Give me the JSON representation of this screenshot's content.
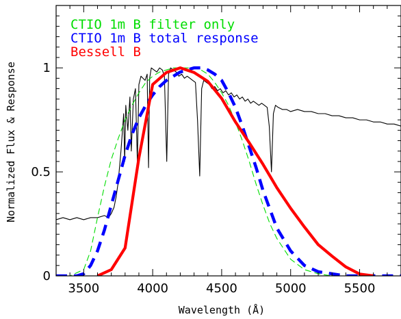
{
  "chart_data": {
    "type": "line",
    "xlabel": "Wavelength (Å)",
    "ylabel": "Normalized Flux & Response",
    "xlim": [
      3300,
      5800
    ],
    "ylim": [
      0,
      1.3
    ],
    "x_ticks": [
      3500,
      4000,
      4500,
      5000,
      5500
    ],
    "y_ticks": [
      0,
      0.5,
      1
    ],
    "y_tick_labels": [
      "0",
      "0.5",
      "1"
    ],
    "legend_position": "top-left",
    "grid": false,
    "series": [
      {
        "name": "CTIO 1m B filter only",
        "color": "#00dd00",
        "style": "dashed-thin",
        "x": [
          3300,
          3400,
          3500,
          3550,
          3600,
          3650,
          3700,
          3750,
          3800,
          3850,
          3900,
          3950,
          4000,
          4050,
          4100,
          4150,
          4200,
          4250,
          4300,
          4350,
          4400,
          4450,
          4500,
          4550,
          4600,
          4650,
          4700,
          4750,
          4800,
          4850,
          4900,
          5000,
          5100,
          5200,
          5300,
          5400,
          5500,
          5600,
          5700,
          5800
        ],
        "y": [
          0,
          0,
          0.03,
          0.12,
          0.28,
          0.43,
          0.56,
          0.66,
          0.75,
          0.82,
          0.88,
          0.93,
          0.96,
          0.98,
          0.99,
          1.0,
          1.0,
          1.0,
          1.0,
          0.99,
          0.97,
          0.93,
          0.88,
          0.82,
          0.74,
          0.65,
          0.55,
          0.44,
          0.34,
          0.25,
          0.18,
          0.08,
          0.03,
          0.01,
          0,
          0,
          0,
          0,
          0,
          0
        ]
      },
      {
        "name": "CTIO 1m B total response",
        "color": "#0000ff",
        "style": "dashed-thick",
        "x": [
          3300,
          3450,
          3500,
          3550,
          3600,
          3650,
          3700,
          3750,
          3800,
          3850,
          3900,
          3950,
          4000,
          4050,
          4100,
          4150,
          4200,
          4250,
          4300,
          4350,
          4400,
          4450,
          4500,
          4550,
          4600,
          4650,
          4700,
          4750,
          4800,
          4850,
          4900,
          5000,
          5100,
          5200,
          5300,
          5400,
          5500,
          5600,
          5800
        ],
        "y": [
          0,
          0,
          0.01,
          0.05,
          0.12,
          0.22,
          0.34,
          0.46,
          0.58,
          0.68,
          0.76,
          0.82,
          0.87,
          0.91,
          0.94,
          0.96,
          0.98,
          0.99,
          1.0,
          1.0,
          0.99,
          0.97,
          0.94,
          0.88,
          0.81,
          0.72,
          0.62,
          0.52,
          0.41,
          0.32,
          0.23,
          0.12,
          0.05,
          0.02,
          0.01,
          0,
          0,
          0,
          0
        ]
      },
      {
        "name": "Bessell B",
        "color": "#ff0000",
        "style": "solid-thick",
        "x": [
          3600,
          3700,
          3800,
          3900,
          4000,
          4100,
          4200,
          4300,
          4400,
          4500,
          4600,
          4700,
          4800,
          4900,
          5000,
          5100,
          5200,
          5300,
          5400,
          5500,
          5600
        ],
        "y": [
          0,
          0.03,
          0.134,
          0.567,
          0.92,
          0.978,
          1.0,
          0.978,
          0.935,
          0.853,
          0.74,
          0.64,
          0.536,
          0.424,
          0.325,
          0.235,
          0.15,
          0.095,
          0.043,
          0.009,
          0
        ]
      },
      {
        "name": "",
        "color": "#000000",
        "style": "solid-thin",
        "x": [
          3300,
          3350,
          3400,
          3450,
          3500,
          3550,
          3600,
          3650,
          3680,
          3700,
          3720,
          3735,
          3750,
          3770,
          3790,
          3797,
          3805,
          3820,
          3835,
          3845,
          3860,
          3875,
          3889,
          3900,
          3915,
          3930,
          3945,
          3960,
          3970,
          3978,
          3990,
          4010,
          4030,
          4050,
          4070,
          4085,
          4102,
          4115,
          4130,
          4150,
          4170,
          4190,
          4210,
          4230,
          4250,
          4270,
          4290,
          4310,
          4325,
          4341,
          4355,
          4370,
          4390,
          4410,
          4430,
          4450,
          4470,
          4490,
          4510,
          4530,
          4550,
          4570,
          4590,
          4610,
          4630,
          4650,
          4670,
          4690,
          4710,
          4730,
          4750,
          4770,
          4790,
          4810,
          4830,
          4845,
          4861,
          4875,
          4890,
          4910,
          4940,
          4970,
          5000,
          5050,
          5100,
          5150,
          5200,
          5250,
          5300,
          5350,
          5400,
          5450,
          5500,
          5550,
          5600,
          5650,
          5700,
          5750,
          5800
        ],
        "y": [
          0.27,
          0.28,
          0.27,
          0.28,
          0.27,
          0.28,
          0.28,
          0.29,
          0.28,
          0.3,
          0.33,
          0.38,
          0.45,
          0.6,
          0.78,
          0.55,
          0.82,
          0.7,
          0.86,
          0.6,
          0.85,
          0.9,
          0.55,
          0.92,
          0.96,
          0.95,
          0.94,
          0.97,
          0.52,
          0.95,
          1.0,
          0.99,
          0.98,
          1.0,
          0.99,
          0.96,
          0.55,
          0.97,
          1.0,
          0.99,
          0.98,
          0.96,
          0.97,
          0.95,
          0.96,
          0.95,
          0.94,
          0.93,
          0.75,
          0.48,
          0.9,
          0.94,
          0.93,
          0.92,
          0.9,
          0.91,
          0.89,
          0.9,
          0.88,
          0.89,
          0.87,
          0.88,
          0.86,
          0.87,
          0.85,
          0.86,
          0.84,
          0.85,
          0.83,
          0.84,
          0.83,
          0.82,
          0.83,
          0.82,
          0.81,
          0.72,
          0.5,
          0.78,
          0.82,
          0.81,
          0.8,
          0.8,
          0.79,
          0.8,
          0.79,
          0.79,
          0.78,
          0.78,
          0.77,
          0.77,
          0.76,
          0.76,
          0.75,
          0.75,
          0.74,
          0.74,
          0.73,
          0.73,
          0.72
        ]
      }
    ]
  }
}
